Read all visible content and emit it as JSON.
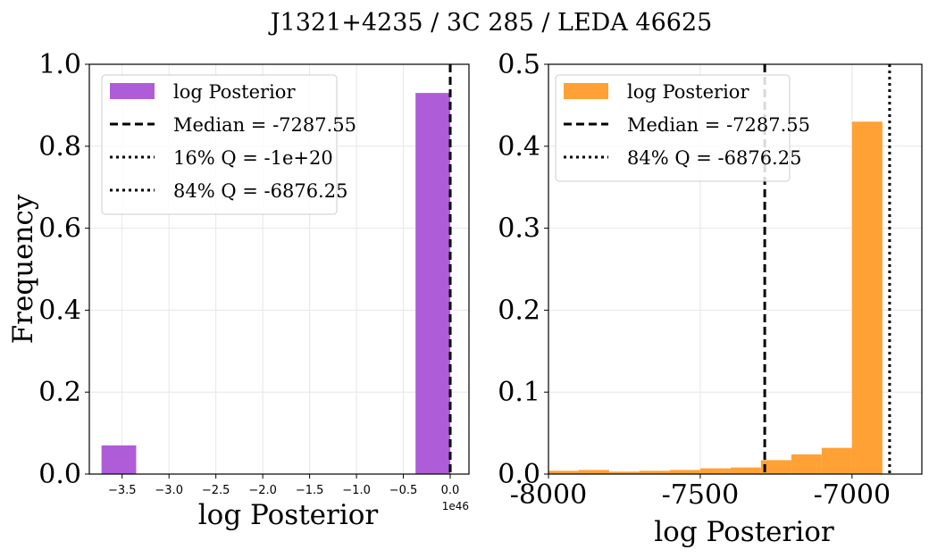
{
  "figure": {
    "title": "J1321+4235 / 3C 285 / LEDA 46625"
  },
  "chart_data": [
    {
      "type": "bar",
      "panel": "left",
      "title": "",
      "xlabel": "log Posterior",
      "ylabel": "Frequency",
      "x_offset_label": "1e46",
      "xlim": [
        -3.85,
        0.2
      ],
      "ylim": [
        0,
        1.0
      ],
      "grid": true,
      "bar_color": "#af5cd9",
      "xticks": [
        -3.5,
        -3.0,
        -2.5,
        -2.0,
        -1.5,
        -1.0,
        -0.5,
        0.0
      ],
      "xtick_labels": [
        "−3.5",
        "−3.0",
        "−2.5",
        "−2.0",
        "−1.5",
        "−1.0",
        "−0.5",
        "0.0"
      ],
      "yticks": [
        0.0,
        0.2,
        0.4,
        0.6,
        0.8,
        1.0
      ],
      "ytick_labels": [
        "0.0",
        "0.2",
        "0.4",
        "0.6",
        "0.8",
        "1.0"
      ],
      "bins": [
        {
          "x0": -3.72,
          "x1": -3.35,
          "value": 0.07
        },
        {
          "x0": -0.37,
          "x1": 0.0,
          "value": 0.93
        }
      ],
      "vlines": [
        {
          "x": 0.0,
          "style": "dashed",
          "key": "median"
        }
      ],
      "legend": {
        "placement": "top-left",
        "entries": [
          {
            "label": "log Posterior",
            "kind": "patch",
            "color": "#af5cd9"
          },
          {
            "label": "Median = -7287.55",
            "kind": "dashed"
          },
          {
            "label": "16% Q = -1e+20",
            "kind": "dotted"
          },
          {
            "label": "84% Q = -6876.25",
            "kind": "dotted"
          }
        ]
      }
    },
    {
      "type": "bar",
      "panel": "right",
      "title": "",
      "xlabel": "log Posterior",
      "ylabel": "",
      "xlim": [
        -8000,
        -6770
      ],
      "ylim": [
        0,
        0.5
      ],
      "grid": true,
      "bar_color": "#ffa135",
      "xticks": [
        -8000,
        -7500,
        -7000
      ],
      "xtick_labels": [
        "-8000",
        "-7500",
        "-7000"
      ],
      "yticks": [
        0.0,
        0.1,
        0.2,
        0.3,
        0.4,
        0.5
      ],
      "ytick_labels": [
        "0.0",
        "0.1",
        "0.2",
        "0.3",
        "0.4",
        "0.5"
      ],
      "bins": [
        {
          "x0": -8000,
          "x1": -7900,
          "value": 0.004
        },
        {
          "x0": -7900,
          "x1": -7800,
          "value": 0.005
        },
        {
          "x0": -7800,
          "x1": -7700,
          "value": 0.003
        },
        {
          "x0": -7700,
          "x1": -7600,
          "value": 0.004
        },
        {
          "x0": -7600,
          "x1": -7500,
          "value": 0.005
        },
        {
          "x0": -7500,
          "x1": -7400,
          "value": 0.007
        },
        {
          "x0": -7400,
          "x1": -7300,
          "value": 0.008
        },
        {
          "x0": -7300,
          "x1": -7200,
          "value": 0.017
        },
        {
          "x0": -7200,
          "x1": -7100,
          "value": 0.024
        },
        {
          "x0": -7100,
          "x1": -7000,
          "value": 0.032
        },
        {
          "x0": -7000,
          "x1": -6900,
          "value": 0.43
        }
      ],
      "vlines": [
        {
          "x": -7287.55,
          "style": "dashed",
          "key": "median"
        },
        {
          "x": -6876.25,
          "style": "dotted",
          "key": "q84"
        }
      ],
      "legend": {
        "placement": "top-left",
        "entries": [
          {
            "label": "log Posterior",
            "kind": "patch",
            "color": "#ffa135"
          },
          {
            "label": "Median = -7287.55",
            "kind": "dashed"
          },
          {
            "label": "84% Q = -6876.25",
            "kind": "dotted"
          }
        ]
      }
    }
  ]
}
